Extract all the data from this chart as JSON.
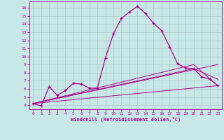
{
  "xlabel": "Windchill (Refroidissement éolien,°C)",
  "ylabel": "",
  "bg_color": "#c8e8e8",
  "grid_color": "#b0c8c8",
  "line_color": "#aa0088",
  "xlim": [
    -0.5,
    23.5
  ],
  "ylim": [
    3.5,
    16.8
  ],
  "xticks": [
    0,
    1,
    2,
    3,
    4,
    5,
    6,
    7,
    8,
    9,
    10,
    11,
    12,
    13,
    14,
    15,
    16,
    17,
    18,
    19,
    20,
    21,
    22,
    23
  ],
  "yticks": [
    4,
    5,
    6,
    7,
    8,
    9,
    10,
    11,
    12,
    13,
    14,
    15,
    16
  ],
  "line1_x": [
    0,
    1,
    2,
    3,
    4,
    5,
    6,
    7,
    8,
    9,
    10,
    11,
    12,
    13,
    14,
    15,
    16,
    17,
    18,
    19,
    20,
    21,
    22,
    23
  ],
  "line1_y": [
    4.2,
    3.9,
    6.3,
    5.2,
    5.8,
    6.7,
    6.6,
    6.1,
    6.1,
    9.8,
    12.8,
    14.7,
    15.5,
    16.2,
    15.3,
    14.1,
    13.2,
    11.2,
    9.1,
    8.6,
    8.5,
    7.5,
    7.2,
    6.4
  ],
  "line2_x": [
    0,
    23
  ],
  "line2_y": [
    4.2,
    6.4
  ],
  "line3_x": [
    0,
    20,
    23
  ],
  "line3_y": [
    4.2,
    8.5,
    7.2
  ],
  "line4_x": [
    0,
    20,
    23
  ],
  "line4_y": [
    4.2,
    9.0,
    6.4
  ],
  "line5_x": [
    0,
    23
  ],
  "line5_y": [
    4.2,
    9.0
  ]
}
